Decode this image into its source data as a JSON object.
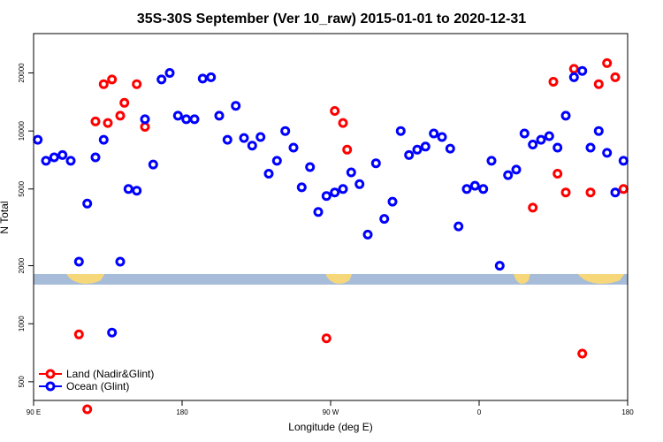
{
  "chart_data": {
    "type": "scatter",
    "title": "35S-30S September (Ver 10_raw)   2015-01-01 to 2020-12-31",
    "xlabel": "Longitude (deg E)",
    "ylabel": "N Total",
    "xlim": [
      90,
      450
    ],
    "ylim": [
      400,
      32000
    ],
    "yscale": "log",
    "x_ticks": [
      {
        "value": 90,
        "label": "90 E"
      },
      {
        "value": 180,
        "label": "180"
      },
      {
        "value": 270,
        "label": "90 W"
      },
      {
        "value": 360,
        "label": "0"
      },
      {
        "value": 450,
        "label": "180"
      }
    ],
    "y_ticks": [
      {
        "value": 500,
        "label": "500"
      },
      {
        "value": 1000,
        "label": "1000"
      },
      {
        "value": 2000,
        "label": "2000"
      },
      {
        "value": 5000,
        "label": "5000"
      },
      {
        "value": 10000,
        "label": "10000"
      },
      {
        "value": 20000,
        "label": "20000"
      }
    ],
    "legend_position": "bottom-left",
    "grid": false,
    "map_band_y": 1700,
    "series": [
      {
        "name": "Land (Nadir&Glint)",
        "color": "#ff0000",
        "x": [
          117.5,
          122.5,
          127.5,
          132.5,
          135,
          137.5,
          142.5,
          145,
          152.5,
          157.5,
          267.5,
          272.5,
          277.5,
          280,
          392.5,
          405,
          407.5,
          412.5,
          417.5,
          422.5,
          427.5,
          432.5,
          437.5,
          442.5,
          447.5
        ],
        "y": [
          880,
          360,
          11200,
          17500,
          11000,
          18500,
          12000,
          14000,
          17500,
          10500,
          840,
          12700,
          11000,
          8000,
          4000,
          18000,
          6000,
          4800,
          21000,
          700,
          4800,
          17500,
          22500,
          19000,
          5000
        ]
      },
      {
        "name": "Ocean (Glint)",
        "color": "#0000ff",
        "x": [
          92.5,
          97.5,
          102.5,
          107.5,
          112.5,
          117.5,
          122.5,
          127.5,
          132.5,
          137.5,
          142.5,
          147.5,
          152.5,
          157.5,
          162.5,
          167.5,
          172.5,
          177.5,
          182.5,
          187.5,
          192.5,
          197.5,
          202.5,
          207.5,
          212.5,
          217.5,
          222.5,
          227.5,
          232.5,
          237.5,
          242.5,
          247.5,
          252.5,
          257.5,
          262.5,
          267.5,
          272.5,
          277.5,
          282.5,
          287.5,
          292.5,
          297.5,
          302.5,
          307.5,
          312.5,
          317.5,
          322.5,
          327.5,
          332.5,
          337.5,
          342.5,
          347.5,
          352.5,
          357.5,
          362.5,
          367.5,
          372.5,
          377.5,
          382.5,
          387.5,
          392.5,
          397.5,
          402.5,
          407.5,
          412.5,
          417.5,
          422.5,
          427.5,
          432.5,
          437.5,
          442.5,
          447.5
        ],
        "y": [
          9000,
          7000,
          7300,
          7500,
          7000,
          2100,
          4200,
          7300,
          9000,
          900,
          2100,
          5000,
          4900,
          11500,
          6700,
          18500,
          20000,
          12000,
          11500,
          11500,
          18700,
          19000,
          12000,
          9000,
          13500,
          9200,
          8400,
          9300,
          6000,
          7000,
          10000,
          8200,
          5100,
          6500,
          3800,
          4600,
          4800,
          5000,
          6100,
          5300,
          2900,
          6800,
          3500,
          4300,
          10000,
          7500,
          8000,
          8300,
          9700,
          9300,
          8100,
          3200,
          5000,
          5200,
          5000,
          7000,
          2000,
          5900,
          6300,
          9700,
          8500,
          9000,
          9400,
          8200,
          12000,
          19000,
          20500,
          8200,
          10000,
          7700,
          4800,
          7000
        ]
      }
    ]
  }
}
